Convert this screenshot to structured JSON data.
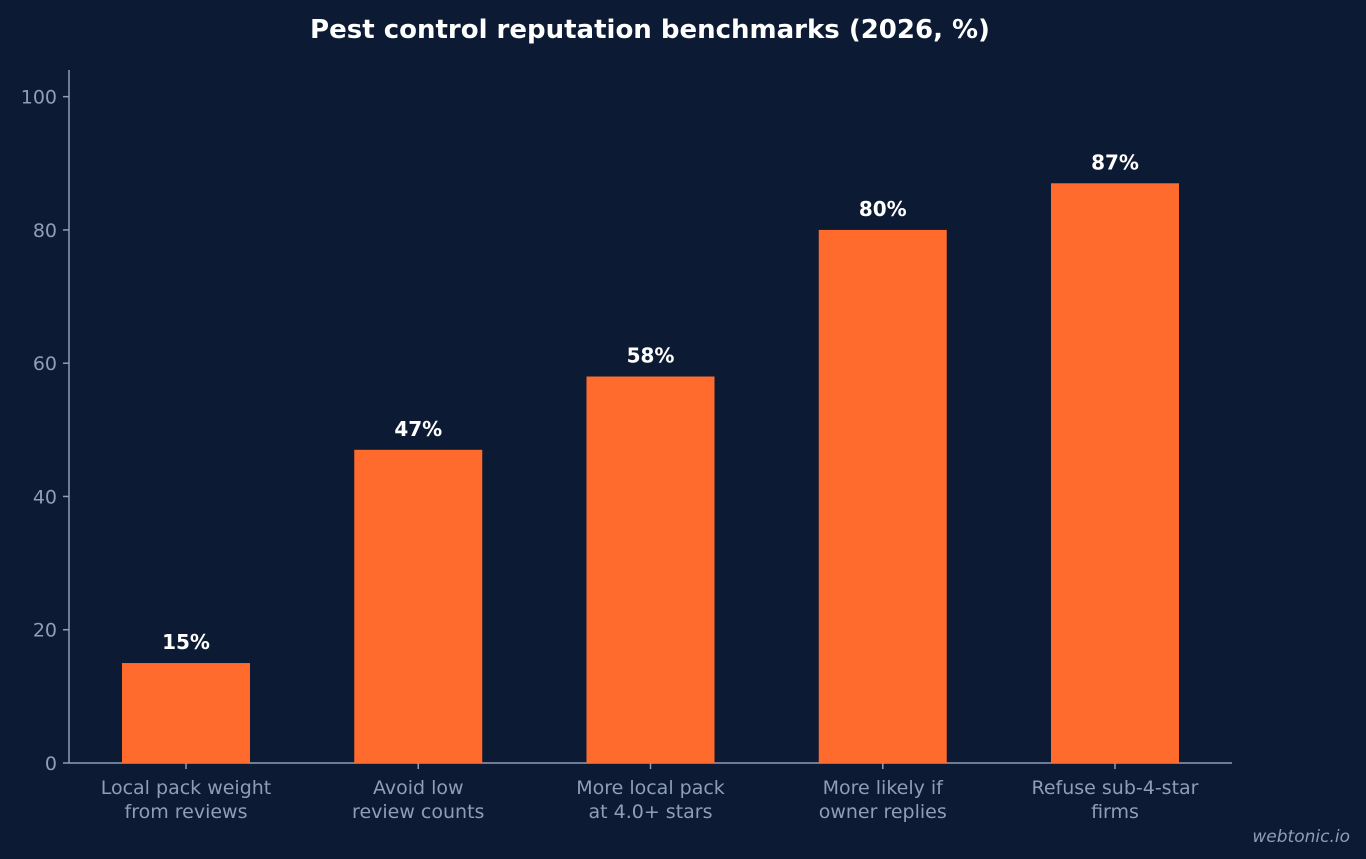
{
  "chart_data": {
    "type": "bar",
    "title": "Pest control reputation benchmarks (2026, %)",
    "categories": [
      [
        "Local pack weight",
        "from reviews"
      ],
      [
        "Avoid low",
        "review counts"
      ],
      [
        "More local pack",
        "at 4.0+ stars"
      ],
      [
        "More likely if",
        "owner replies"
      ],
      [
        "Refuse sub-4-star",
        "firms"
      ]
    ],
    "values": [
      15,
      47,
      58,
      80,
      87
    ],
    "data_labels": [
      "15%",
      "47%",
      "58%",
      "80%",
      "87%"
    ],
    "ylim": [
      0,
      104
    ],
    "yticks": [
      0,
      20,
      40,
      60,
      80,
      100
    ],
    "grid": false,
    "bar_color": "#ff6b2d",
    "background_color": "#0c1b33"
  },
  "watermark": "webtonic.io"
}
